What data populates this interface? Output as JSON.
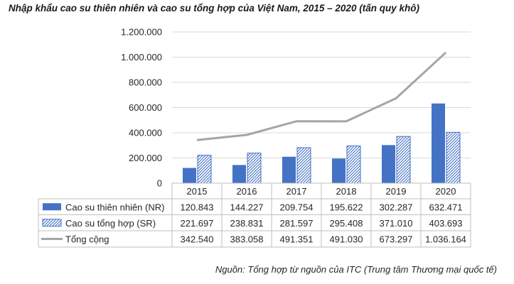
{
  "chart_data": {
    "type": "bar",
    "title": "Nhập khẩu cao su thiên nhiên và cao su tổng hợp của Việt Nam, 2015 – 2020 (tấn quy khô)",
    "categories": [
      "2015",
      "2016",
      "2017",
      "2018",
      "2019",
      "2020"
    ],
    "series": [
      {
        "name": "Cao su thiên nhiên (NR)",
        "kind": "bar",
        "pattern": "solid",
        "color": "#4472C4",
        "values": [
          120843,
          144227,
          209754,
          195622,
          302287,
          632471
        ],
        "labels": [
          "120.843",
          "144.227",
          "209.754",
          "195.622",
          "302.287",
          "632.471"
        ]
      },
      {
        "name": "Cao su tổng hợp (SR)",
        "kind": "bar",
        "pattern": "diagonal-hatch",
        "color": "#4472C4",
        "values": [
          221697,
          238831,
          281597,
          295408,
          371010,
          403693
        ],
        "labels": [
          "221.697",
          "238.831",
          "281.597",
          "295.408",
          "371.010",
          "403.693"
        ]
      },
      {
        "name": "Tổng cộng",
        "kind": "line",
        "color": "#A5A5A5",
        "values": [
          342540,
          383058,
          491351,
          491030,
          673297,
          1036164
        ],
        "labels": [
          "342.540",
          "383.058",
          "491.351",
          "491.030",
          "673.297",
          "1.036.164"
        ]
      }
    ],
    "ylim": [
      0,
      1200000
    ],
    "yticks": [
      0,
      200000,
      400000,
      600000,
      800000,
      1000000,
      1200000
    ],
    "ytick_labels": [
      "0",
      "200.000",
      "400.000",
      "600.000",
      "800.000",
      "1.000.000",
      "1.200.000"
    ],
    "grid": true,
    "legend": "data-table",
    "source": "Nguồn: Tổng hợp từ nguồn của ITC (Trung tâm Thương mại quốc tế)"
  }
}
